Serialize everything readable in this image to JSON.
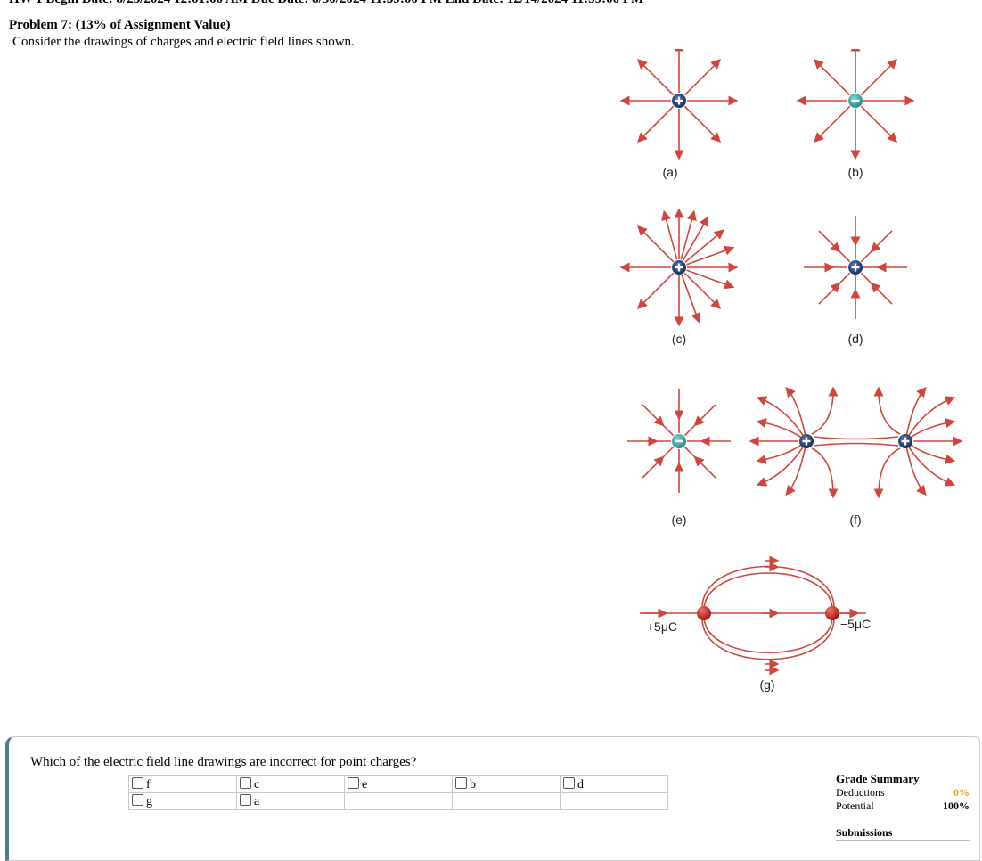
{
  "header": {
    "top_line": "HW 1     Begin Date: 8/23/2024 12:01:00 AM  Due Date: 8/30/2024 11:59:00 PM  End Date: 12/14/2024 11:59:00 PM"
  },
  "problem": {
    "title": "Problem 7: (13% of Assignment Value)",
    "text": "Consider the drawings of charges and electric field lines shown."
  },
  "figure": {
    "labels": [
      "(a)",
      "(b)",
      "(c)",
      "(d)",
      "(e)",
      "(f)",
      "(g)"
    ],
    "charge_left": "+5μC",
    "charge_right": "−5μC",
    "colors": {
      "field_line": "#d0463c",
      "positive": "#1f3f7a",
      "negative": "#3aa5a3",
      "sphere": "#c8241f"
    }
  },
  "question": {
    "prompt": "Which of the electric field line drawings are incorrect for point charges?",
    "options_row1": [
      "f",
      "c",
      "e",
      "b",
      "d"
    ],
    "options_row2": [
      "g",
      "a"
    ]
  },
  "grade": {
    "title": "Grade Summary",
    "deductions_label": "Deductions",
    "deductions_value": "0%",
    "potential_label": "Potential",
    "potential_value": "100%",
    "submissions_label": "Submissions"
  }
}
